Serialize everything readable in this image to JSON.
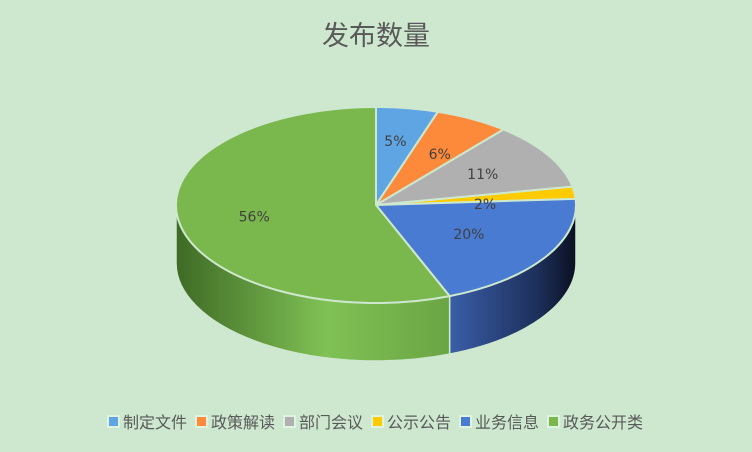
{
  "chart_data": {
    "type": "pie",
    "title": "发布数量",
    "three_d": true,
    "categories": [
      "制定文件",
      "政策解读",
      "部门会议",
      "公示公告",
      "业务信息",
      "政务公开类"
    ],
    "values": [
      5,
      6,
      11,
      2,
      20,
      56
    ],
    "labels": [
      "5%",
      "6%",
      "11%",
      "2%",
      "20%",
      "56%"
    ],
    "colors": [
      "#5fa5e3",
      "#fd8a3a",
      "#b0b0b0",
      "#fecb00",
      "#4a7bd2",
      "#7ab84e"
    ],
    "legend_position": "bottom"
  }
}
